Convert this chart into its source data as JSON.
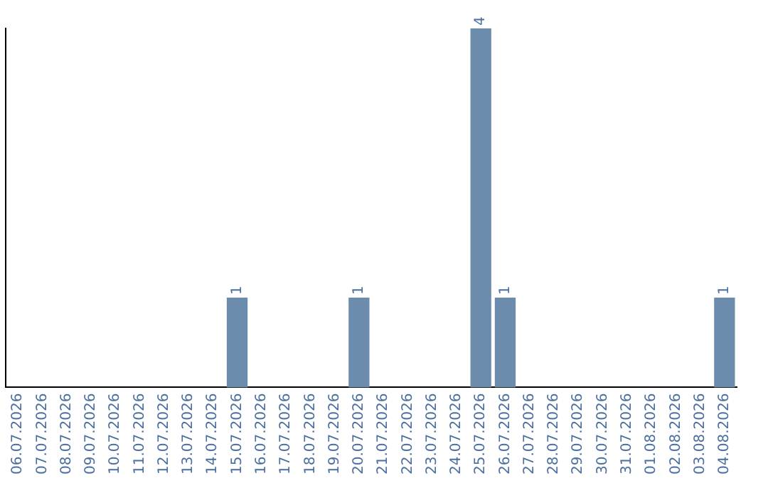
{
  "chart_data": {
    "type": "bar",
    "categories": [
      "06.07.2026",
      "07.07.2026",
      "08.07.2026",
      "09.07.2026",
      "10.07.2026",
      "11.07.2026",
      "12.07.2026",
      "13.07.2026",
      "14.07.2026",
      "15.07.2026",
      "16.07.2026",
      "17.07.2026",
      "18.07.2026",
      "19.07.2026",
      "20.07.2026",
      "21.07.2026",
      "22.07.2026",
      "23.07.2026",
      "24.07.2026",
      "25.07.2026",
      "26.07.2026",
      "27.07.2026",
      "28.07.2026",
      "29.07.2026",
      "30.07.2026",
      "31.07.2026",
      "01.08.2026",
      "02.08.2026",
      "03.08.2026",
      "04.08.2026"
    ],
    "values": [
      0,
      0,
      0,
      0,
      0,
      0,
      0,
      0,
      0,
      1,
      0,
      0,
      0,
      0,
      1,
      0,
      0,
      0,
      0,
      4,
      1,
      0,
      0,
      0,
      0,
      0,
      0,
      0,
      0,
      1
    ],
    "value_labels": [
      null,
      null,
      null,
      null,
      null,
      null,
      null,
      null,
      null,
      "1",
      null,
      null,
      null,
      null,
      "1",
      null,
      null,
      null,
      null,
      "4",
      "1",
      null,
      null,
      null,
      null,
      null,
      null,
      null,
      null,
      "1"
    ],
    "color": "#6b8cad",
    "grid": false,
    "legend": false
  }
}
